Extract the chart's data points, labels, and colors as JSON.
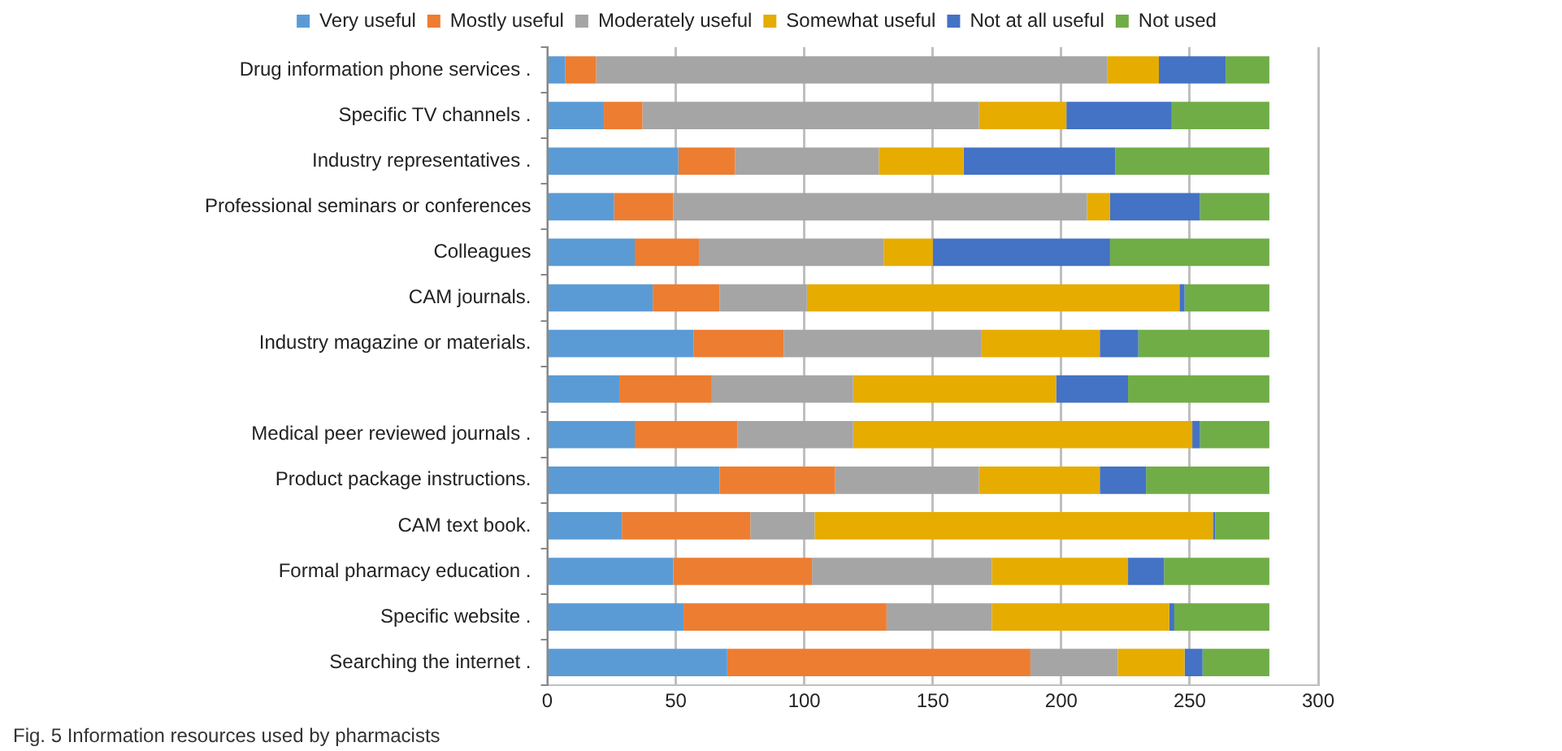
{
  "chart_data": {
    "type": "bar",
    "orientation": "horizontal",
    "stacked": true,
    "categories": [
      "Drug information phone services .",
      "Specific TV channels .",
      "Industry representatives .",
      "Professional seminars or conferences",
      "Colleagues",
      "CAM journals.",
      "Industry magazine or materials.",
      null,
      "Medical peer reviewed journals .",
      "Product package instructions.",
      "CAM text book.",
      "Formal pharmacy education .",
      "Specific website .",
      "Searching the internet ."
    ],
    "series": [
      {
        "name": "Very useful",
        "color": "#5b9bd5",
        "values": [
          7,
          22,
          51,
          26,
          34,
          41,
          57,
          28,
          34,
          67,
          29,
          49,
          53,
          70
        ]
      },
      {
        "name": "Mostly useful",
        "color": "#ed7d31",
        "values": [
          12,
          15,
          22,
          23,
          25,
          26,
          35,
          36,
          40,
          45,
          50,
          54,
          79,
          118
        ]
      },
      {
        "name": "Moderately useful",
        "color": "#a5a5a5",
        "values": [
          199,
          131,
          56,
          161,
          72,
          34,
          77,
          55,
          45,
          56,
          25,
          70,
          41,
          34
        ]
      },
      {
        "name": "Somewhat useful",
        "color": "#e6ac00",
        "values": [
          20,
          34,
          33,
          9,
          19,
          145,
          46,
          79,
          132,
          47,
          155,
          53,
          69,
          26
        ]
      },
      {
        "name": "Not at all useful",
        "color": "#4472c4",
        "values": [
          26,
          41,
          59,
          35,
          69,
          2,
          15,
          28,
          3,
          18,
          1,
          14,
          2,
          7
        ]
      },
      {
        "name": "Not used",
        "color": "#70ad47",
        "values": [
          17,
          38,
          60,
          27,
          62,
          33,
          51,
          55,
          27,
          48,
          21,
          41,
          37,
          26
        ]
      }
    ],
    "xlim": [
      0,
      300
    ],
    "xticks": [
      0,
      50,
      100,
      150,
      200,
      250,
      300
    ],
    "grid": "x",
    "legend": "top",
    "annotations": [
      "Fig. 5 Information resources used by pharmacists"
    ]
  }
}
